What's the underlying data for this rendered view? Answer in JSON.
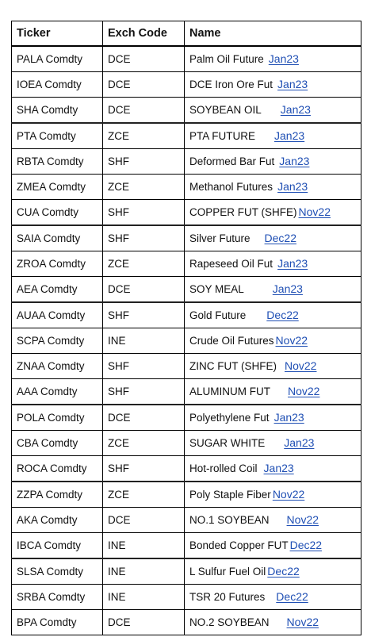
{
  "table": {
    "headers": [
      "Ticker",
      "Exch Code",
      "Name"
    ],
    "rows": [
      {
        "ticker": "PALA Comdty",
        "exch": "DCE",
        "name": "Palm Oil Future",
        "month": "Jan23"
      },
      {
        "ticker": "IOEA Comdty",
        "exch": "DCE",
        "name": "DCE Iron Ore Fut",
        "month": "Jan23"
      },
      {
        "ticker": "SHA Comdty",
        "exch": "DCE",
        "name": "SOYBEAN OIL",
        "month": "Jan23"
      },
      {
        "ticker": "PTA Comdty",
        "exch": "ZCE",
        "name": "PTA FUTURE",
        "month": "Jan23"
      },
      {
        "ticker": "RBTA Comdty",
        "exch": "SHF",
        "name": "Deformed Bar Fut",
        "month": "Jan23"
      },
      {
        "ticker": "ZMEA Comdty",
        "exch": "ZCE",
        "name": "Methanol Futures",
        "month": "Jan23"
      },
      {
        "ticker": "CUA Comdty",
        "exch": "SHF",
        "name": "COPPER FUT (SHFE)",
        "month": "Nov22"
      },
      {
        "ticker": "SAIA Comdty",
        "exch": "SHF",
        "name": "Silver Future",
        "month": "Dec22"
      },
      {
        "ticker": "ZROA Comdty",
        "exch": "ZCE",
        "name": "Rapeseed Oil Fut",
        "month": "Jan23"
      },
      {
        "ticker": "AEA Comdty",
        "exch": "DCE",
        "name": "SOY MEAL",
        "month": "Jan23"
      },
      {
        "ticker": "AUAA Comdty",
        "exch": "SHF",
        "name": "Gold Future",
        "month": "Dec22"
      },
      {
        "ticker": "SCPA Comdty",
        "exch": "INE",
        "name": "Crude Oil Futures",
        "month": "Nov22"
      },
      {
        "ticker": "ZNAA Comdty",
        "exch": "SHF",
        "name": "ZINC FUT (SHFE)",
        "month": "Nov22"
      },
      {
        "ticker": "AAA Comdty",
        "exch": "SHF",
        "name": "ALUMINUM FUT",
        "month": "Nov22"
      },
      {
        "ticker": "POLA Comdty",
        "exch": "DCE",
        "name": "Polyethylene Fut",
        "month": "Jan23"
      },
      {
        "ticker": "CBA Comdty",
        "exch": "ZCE",
        "name": "SUGAR WHITE",
        "month": "Jan23"
      },
      {
        "ticker": "ROCA Comdty",
        "exch": "SHF",
        "name": "Hot-rolled Coil",
        "month": "Jan23"
      },
      {
        "ticker": "ZZPA Comdty",
        "exch": "ZCE",
        "name": "Poly Staple Fiber",
        "month": "Nov22"
      },
      {
        "ticker": "AKA Comdty",
        "exch": "DCE",
        "name": "NO.1 SOYBEAN",
        "month": "Nov22"
      },
      {
        "ticker": "IBCA Comdty",
        "exch": "INE",
        "name": "Bonded Copper FUT",
        "month": "Dec22"
      },
      {
        "ticker": "SLSA Comdty",
        "exch": "INE",
        "name": "L Sulfur Fuel Oil",
        "month": "Dec22"
      },
      {
        "ticker": "SRBA Comdty",
        "exch": "INE",
        "name": "TSR 20 Futures",
        "month": "Dec22"
      },
      {
        "ticker": "BPA Comdty",
        "exch": "DCE",
        "name": "NO.2 SOYBEAN",
        "month": "Nov22"
      }
    ]
  },
  "colors": {
    "link": "#1f4fb4",
    "border": "#000000"
  }
}
